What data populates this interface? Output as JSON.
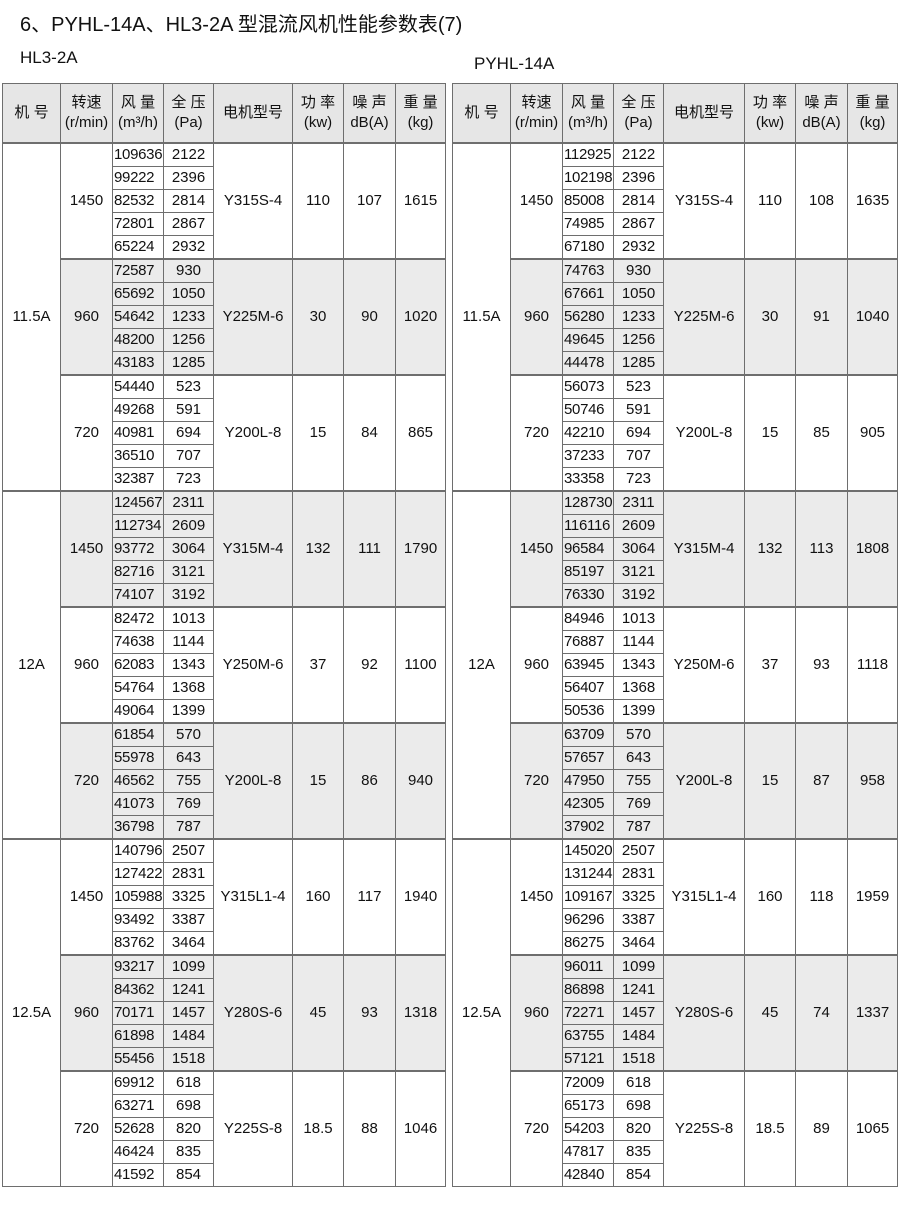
{
  "title": "6、PYHL-14A、HL3-2A 型混流风机性能参数表(7)",
  "headers": [
    "机 号",
    "转速\n(r/min)",
    "风 量\n(m³/h)",
    "全 压\n(Pa)",
    "电机型号",
    "功 率\n(kw)",
    "噪 声\ndB(A)",
    "重 量\n(kg)"
  ],
  "tables": [
    {
      "label": "HL3-2A",
      "models": [
        {
          "model": "11.5A",
          "groups": [
            {
              "speed": "1450",
              "motor": "Y315S-4",
              "power": "110",
              "noise": "107",
              "weight": "1615",
              "rows": [
                [
                  "109636",
                  "2122"
                ],
                [
                  "99222",
                  "2396"
                ],
                [
                  "82532",
                  "2814"
                ],
                [
                  "72801",
                  "2867"
                ],
                [
                  "65224",
                  "2932"
                ]
              ]
            },
            {
              "speed": "960",
              "motor": "Y225M-6",
              "power": "30",
              "noise": "90",
              "weight": "1020",
              "rows": [
                [
                  "72587",
                  "930"
                ],
                [
                  "65692",
                  "1050"
                ],
                [
                  "54642",
                  "1233"
                ],
                [
                  "48200",
                  "1256"
                ],
                [
                  "43183",
                  "1285"
                ]
              ]
            },
            {
              "speed": "720",
              "motor": "Y200L-8",
              "power": "15",
              "noise": "84",
              "weight": "865",
              "rows": [
                [
                  "54440",
                  "523"
                ],
                [
                  "49268",
                  "591"
                ],
                [
                  "40981",
                  "694"
                ],
                [
                  "36510",
                  "707"
                ],
                [
                  "32387",
                  "723"
                ]
              ]
            }
          ]
        },
        {
          "model": "12A",
          "groups": [
            {
              "speed": "1450",
              "motor": "Y315M-4",
              "power": "132",
              "noise": "111",
              "weight": "1790",
              "rows": [
                [
                  "124567",
                  "2311"
                ],
                [
                  "112734",
                  "2609"
                ],
                [
                  "93772",
                  "3064"
                ],
                [
                  "82716",
                  "3121"
                ],
                [
                  "74107",
                  "3192"
                ]
              ]
            },
            {
              "speed": "960",
              "motor": "Y250M-6",
              "power": "37",
              "noise": "92",
              "weight": "1100",
              "rows": [
                [
                  "82472",
                  "1013"
                ],
                [
                  "74638",
                  "1144"
                ],
                [
                  "62083",
                  "1343"
                ],
                [
                  "54764",
                  "1368"
                ],
                [
                  "49064",
                  "1399"
                ]
              ]
            },
            {
              "speed": "720",
              "motor": "Y200L-8",
              "power": "15",
              "noise": "86",
              "weight": "940",
              "rows": [
                [
                  "61854",
                  "570"
                ],
                [
                  "55978",
                  "643"
                ],
                [
                  "46562",
                  "755"
                ],
                [
                  "41073",
                  "769"
                ],
                [
                  "36798",
                  "787"
                ]
              ]
            }
          ]
        },
        {
          "model": "12.5A",
          "groups": [
            {
              "speed": "1450",
              "motor": "Y315L1-4",
              "power": "160",
              "noise": "117",
              "weight": "1940",
              "rows": [
                [
                  "140796",
                  "2507"
                ],
                [
                  "127422",
                  "2831"
                ],
                [
                  "105988",
                  "3325"
                ],
                [
                  "93492",
                  "3387"
                ],
                [
                  "83762",
                  "3464"
                ]
              ]
            },
            {
              "speed": "960",
              "motor": "Y280S-6",
              "power": "45",
              "noise": "93",
              "weight": "1318",
              "rows": [
                [
                  "93217",
                  "1099"
                ],
                [
                  "84362",
                  "1241"
                ],
                [
                  "70171",
                  "1457"
                ],
                [
                  "61898",
                  "1484"
                ],
                [
                  "55456",
                  "1518"
                ]
              ]
            },
            {
              "speed": "720",
              "motor": "Y225S-8",
              "power": "18.5",
              "noise": "88",
              "weight": "1046",
              "rows": [
                [
                  "69912",
                  "618"
                ],
                [
                  "63271",
                  "698"
                ],
                [
                  "52628",
                  "820"
                ],
                [
                  "46424",
                  "835"
                ],
                [
                  "41592",
                  "854"
                ]
              ]
            }
          ]
        }
      ]
    },
    {
      "label": "PYHL-14A",
      "models": [
        {
          "model": "11.5A",
          "groups": [
            {
              "speed": "1450",
              "motor": "Y315S-4",
              "power": "110",
              "noise": "108",
              "weight": "1635",
              "rows": [
                [
                  "112925",
                  "2122"
                ],
                [
                  "102198",
                  "2396"
                ],
                [
                  "85008",
                  "2814"
                ],
                [
                  "74985",
                  "2867"
                ],
                [
                  "67180",
                  "2932"
                ]
              ]
            },
            {
              "speed": "960",
              "motor": "Y225M-6",
              "power": "30",
              "noise": "91",
              "weight": "1040",
              "rows": [
                [
                  "74763",
                  "930"
                ],
                [
                  "67661",
                  "1050"
                ],
                [
                  "56280",
                  "1233"
                ],
                [
                  "49645",
                  "1256"
                ],
                [
                  "44478",
                  "1285"
                ]
              ]
            },
            {
              "speed": "720",
              "motor": "Y200L-8",
              "power": "15",
              "noise": "85",
              "weight": "905",
              "rows": [
                [
                  "56073",
                  "523"
                ],
                [
                  "50746",
                  "591"
                ],
                [
                  "42210",
                  "694"
                ],
                [
                  "37233",
                  "707"
                ],
                [
                  "33358",
                  "723"
                ]
              ]
            }
          ]
        },
        {
          "model": "12A",
          "groups": [
            {
              "speed": "1450",
              "motor": "Y315M-4",
              "power": "132",
              "noise": "113",
              "weight": "1808",
              "rows": [
                [
                  "128730",
                  "2311"
                ],
                [
                  "116116",
                  "2609"
                ],
                [
                  "96584",
                  "3064"
                ],
                [
                  "85197",
                  "3121"
                ],
                [
                  "76330",
                  "3192"
                ]
              ]
            },
            {
              "speed": "960",
              "motor": "Y250M-6",
              "power": "37",
              "noise": "93",
              "weight": "1118",
              "rows": [
                [
                  "84946",
                  "1013"
                ],
                [
                  "76887",
                  "1144"
                ],
                [
                  "63945",
                  "1343"
                ],
                [
                  "56407",
                  "1368"
                ],
                [
                  "50536",
                  "1399"
                ]
              ]
            },
            {
              "speed": "720",
              "motor": "Y200L-8",
              "power": "15",
              "noise": "87",
              "weight": "958",
              "rows": [
                [
                  "63709",
                  "570"
                ],
                [
                  "57657",
                  "643"
                ],
                [
                  "47950",
                  "755"
                ],
                [
                  "42305",
                  "769"
                ],
                [
                  "37902",
                  "787"
                ]
              ]
            }
          ]
        },
        {
          "model": "12.5A",
          "groups": [
            {
              "speed": "1450",
              "motor": "Y315L1-4",
              "power": "160",
              "noise": "118",
              "weight": "1959",
              "rows": [
                [
                  "145020",
                  "2507"
                ],
                [
                  "131244",
                  "2831"
                ],
                [
                  "109167",
                  "3325"
                ],
                [
                  "96296",
                  "3387"
                ],
                [
                  "86275",
                  "3464"
                ]
              ]
            },
            {
              "speed": "960",
              "motor": "Y280S-6",
              "power": "45",
              "noise": "74",
              "weight": "1337",
              "rows": [
                [
                  "96011",
                  "1099"
                ],
                [
                  "86898",
                  "1241"
                ],
                [
                  "72271",
                  "1457"
                ],
                [
                  "63755",
                  "1484"
                ],
                [
                  "57121",
                  "1518"
                ]
              ]
            },
            {
              "speed": "720",
              "motor": "Y225S-8",
              "power": "18.5",
              "noise": "89",
              "weight": "1065",
              "rows": [
                [
                  "72009",
                  "618"
                ],
                [
                  "65173",
                  "698"
                ],
                [
                  "54203",
                  "820"
                ],
                [
                  "47817",
                  "835"
                ],
                [
                  "42840",
                  "854"
                ]
              ]
            }
          ]
        }
      ]
    }
  ]
}
